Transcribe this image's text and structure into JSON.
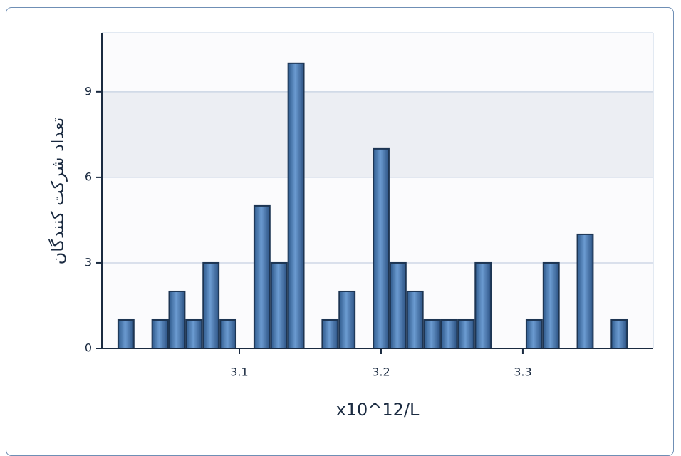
{
  "chart_data": {
    "type": "histogram",
    "x_label": "x10^12/L",
    "y_label": "تعداد شرکت کنندگان",
    "bins": [
      3.014,
      3.026,
      3.038,
      3.05,
      3.062,
      3.074,
      3.086,
      3.098,
      3.11,
      3.122,
      3.134,
      3.146,
      3.158,
      3.17,
      3.182,
      3.194,
      3.206,
      3.218,
      3.23,
      3.242,
      3.254,
      3.266,
      3.278,
      3.29,
      3.302,
      3.314,
      3.326,
      3.338,
      3.35,
      3.362,
      3.374
    ],
    "values": [
      1,
      0,
      1,
      2,
      1,
      3,
      1,
      0,
      5,
      3,
      10,
      0,
      1,
      2,
      0,
      7,
      3,
      2,
      1,
      1,
      1,
      3,
      0,
      0,
      1,
      3,
      0,
      4,
      0,
      1
    ],
    "color": "#4f81bd",
    "xlim": [
      3.003,
      3.392
    ],
    "xticks": [
      3.1,
      3.2,
      3.3
    ],
    "ylim": [
      0,
      11.07
    ],
    "yticks": [
      0,
      3,
      6,
      9
    ],
    "grid": true
  }
}
